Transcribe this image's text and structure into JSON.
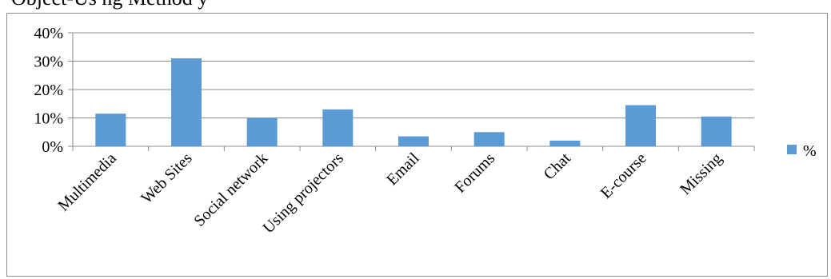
{
  "caption": {
    "text": "Object-Us ng         Method                     y"
  },
  "chart_data": {
    "type": "bar",
    "categories": [
      "Multimedia",
      "Web Sites",
      "Social network",
      "Using projectors",
      "Email",
      "Forums",
      "Chat",
      "E-course",
      "Missing"
    ],
    "series": [
      {
        "name": "%",
        "values": [
          11.5,
          31,
          10,
          13,
          3.5,
          5,
          2,
          14.5,
          10.5
        ],
        "color": "#5b9bd5"
      }
    ],
    "ylim": [
      0,
      40
    ],
    "yticks": [
      0,
      10,
      20,
      30,
      40
    ],
    "ytick_labels": [
      "0%",
      "10%",
      "20%",
      "30%",
      "40%"
    ],
    "grid": true,
    "legend": "right"
  }
}
